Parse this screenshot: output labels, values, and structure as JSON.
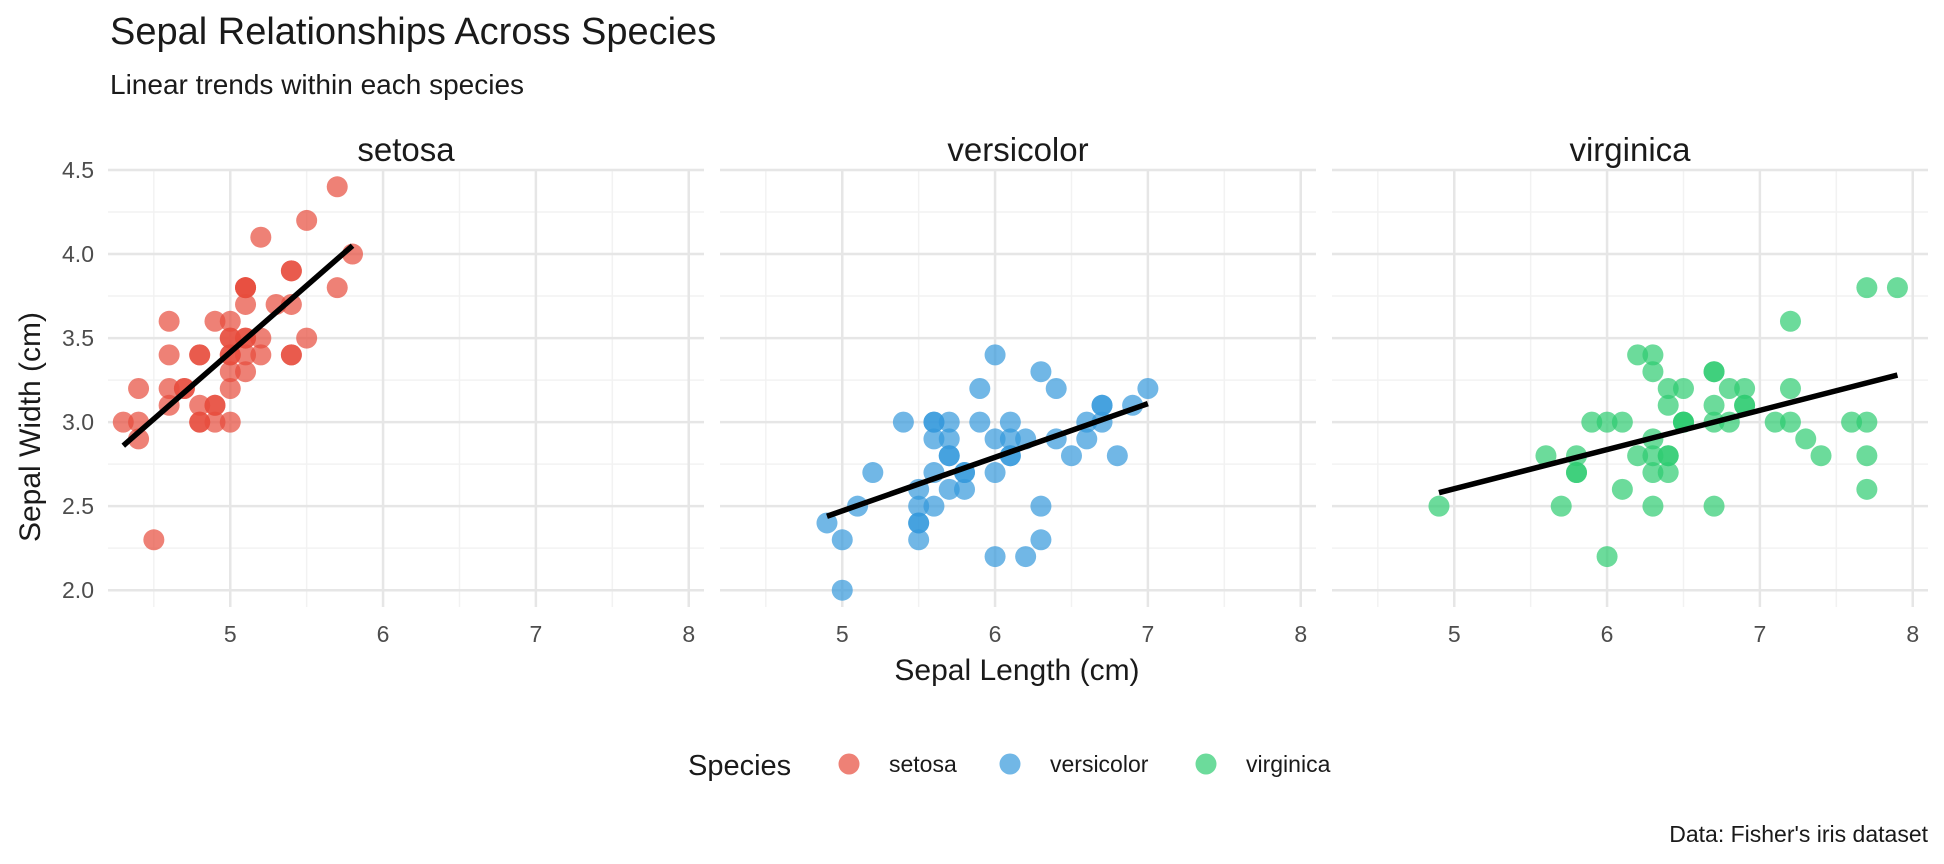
{
  "chart_data": {
    "type": "scatter",
    "title": "Sepal Relationships Across Species",
    "subtitle": "Linear trends within each species",
    "xlabel": "Sepal Length (cm)",
    "ylabel": "Sepal Width (cm)",
    "caption": "Data: Fisher's iris dataset",
    "xlim": [
      4.2,
      8.1
    ],
    "ylim": [
      1.9,
      4.5
    ],
    "x_ticks": [
      5,
      6,
      7,
      8
    ],
    "y_ticks": [
      2.0,
      2.5,
      3.0,
      3.5,
      4.0,
      4.5
    ],
    "y_tick_labels": [
      "2.0",
      "2.5",
      "3.0",
      "3.5",
      "4.0",
      "4.5"
    ],
    "grid": true,
    "facet_by": "Species",
    "legend": {
      "title": "Species",
      "position": "bottom"
    },
    "panels": [
      {
        "name": "setosa",
        "color": "#E74C3C",
        "trend": {
          "x": [
            4.3,
            5.8
          ],
          "y": [
            2.86,
            4.05
          ]
        },
        "points": [
          [
            5.1,
            3.5
          ],
          [
            4.9,
            3.0
          ],
          [
            4.7,
            3.2
          ],
          [
            4.6,
            3.1
          ],
          [
            5.0,
            3.6
          ],
          [
            5.4,
            3.9
          ],
          [
            4.6,
            3.4
          ],
          [
            5.0,
            3.4
          ],
          [
            4.4,
            2.9
          ],
          [
            4.9,
            3.1
          ],
          [
            5.4,
            3.7
          ],
          [
            4.8,
            3.4
          ],
          [
            4.8,
            3.0
          ],
          [
            4.3,
            3.0
          ],
          [
            5.8,
            4.0
          ],
          [
            5.7,
            4.4
          ],
          [
            5.4,
            3.9
          ],
          [
            5.1,
            3.5
          ],
          [
            5.7,
            3.8
          ],
          [
            5.1,
            3.8
          ],
          [
            5.4,
            3.4
          ],
          [
            5.1,
            3.7
          ],
          [
            4.6,
            3.6
          ],
          [
            5.1,
            3.3
          ],
          [
            4.8,
            3.4
          ],
          [
            5.0,
            3.0
          ],
          [
            5.0,
            3.4
          ],
          [
            5.2,
            3.5
          ],
          [
            5.2,
            3.4
          ],
          [
            4.7,
            3.2
          ],
          [
            4.8,
            3.1
          ],
          [
            5.4,
            3.4
          ],
          [
            5.2,
            4.1
          ],
          [
            5.5,
            4.2
          ],
          [
            4.9,
            3.1
          ],
          [
            5.0,
            3.2
          ],
          [
            5.5,
            3.5
          ],
          [
            4.9,
            3.6
          ],
          [
            4.4,
            3.0
          ],
          [
            5.1,
            3.4
          ],
          [
            5.0,
            3.5
          ],
          [
            4.5,
            2.3
          ],
          [
            4.4,
            3.2
          ],
          [
            5.0,
            3.5
          ],
          [
            5.1,
            3.8
          ],
          [
            4.8,
            3.0
          ],
          [
            5.1,
            3.8
          ],
          [
            4.6,
            3.2
          ],
          [
            5.3,
            3.7
          ],
          [
            5.0,
            3.3
          ]
        ]
      },
      {
        "name": "versicolor",
        "color": "#3498DB",
        "trend": {
          "x": [
            4.9,
            7.0
          ],
          "y": [
            2.44,
            3.11
          ]
        },
        "points": [
          [
            7.0,
            3.2
          ],
          [
            6.4,
            3.2
          ],
          [
            6.9,
            3.1
          ],
          [
            5.5,
            2.3
          ],
          [
            6.5,
            2.8
          ],
          [
            5.7,
            2.8
          ],
          [
            6.3,
            3.3
          ],
          [
            4.9,
            2.4
          ],
          [
            6.6,
            2.9
          ],
          [
            5.2,
            2.7
          ],
          [
            5.0,
            2.0
          ],
          [
            5.9,
            3.0
          ],
          [
            6.0,
            2.2
          ],
          [
            6.1,
            2.9
          ],
          [
            5.6,
            2.9
          ],
          [
            6.7,
            3.1
          ],
          [
            5.6,
            3.0
          ],
          [
            5.8,
            2.7
          ],
          [
            6.2,
            2.2
          ],
          [
            5.6,
            2.5
          ],
          [
            5.9,
            3.2
          ],
          [
            6.1,
            2.8
          ],
          [
            6.3,
            2.5
          ],
          [
            6.1,
            2.8
          ],
          [
            6.4,
            2.9
          ],
          [
            6.6,
            3.0
          ],
          [
            6.8,
            2.8
          ],
          [
            6.7,
            3.0
          ],
          [
            6.0,
            2.9
          ],
          [
            5.7,
            2.6
          ],
          [
            5.5,
            2.4
          ],
          [
            5.5,
            2.4
          ],
          [
            5.8,
            2.7
          ],
          [
            6.0,
            2.7
          ],
          [
            5.4,
            3.0
          ],
          [
            6.0,
            3.4
          ],
          [
            6.7,
            3.1
          ],
          [
            6.3,
            2.3
          ],
          [
            5.6,
            3.0
          ],
          [
            5.5,
            2.5
          ],
          [
            5.5,
            2.6
          ],
          [
            6.1,
            3.0
          ],
          [
            5.8,
            2.6
          ],
          [
            5.0,
            2.3
          ],
          [
            5.6,
            2.7
          ],
          [
            5.7,
            3.0
          ],
          [
            5.7,
            2.9
          ],
          [
            6.2,
            2.9
          ],
          [
            5.1,
            2.5
          ],
          [
            5.7,
            2.8
          ]
        ]
      },
      {
        "name": "virginica",
        "color": "#2ECC71",
        "trend": {
          "x": [
            4.9,
            7.9
          ],
          "y": [
            2.58,
            3.28
          ]
        },
        "points": [
          [
            6.3,
            3.3
          ],
          [
            5.8,
            2.7
          ],
          [
            7.1,
            3.0
          ],
          [
            6.3,
            2.9
          ],
          [
            6.5,
            3.0
          ],
          [
            7.6,
            3.0
          ],
          [
            4.9,
            2.5
          ],
          [
            7.3,
            2.9
          ],
          [
            6.7,
            2.5
          ],
          [
            7.2,
            3.6
          ],
          [
            6.5,
            3.2
          ],
          [
            6.4,
            2.7
          ],
          [
            6.8,
            3.0
          ],
          [
            5.7,
            2.5
          ],
          [
            5.8,
            2.8
          ],
          [
            6.4,
            3.2
          ],
          [
            6.5,
            3.0
          ],
          [
            7.7,
            3.8
          ],
          [
            7.7,
            2.6
          ],
          [
            6.0,
            2.2
          ],
          [
            6.9,
            3.2
          ],
          [
            5.6,
            2.8
          ],
          [
            7.7,
            2.8
          ],
          [
            6.3,
            2.7
          ],
          [
            6.7,
            3.3
          ],
          [
            7.2,
            3.2
          ],
          [
            6.2,
            2.8
          ],
          [
            6.1,
            3.0
          ],
          [
            6.4,
            2.8
          ],
          [
            7.2,
            3.0
          ],
          [
            7.4,
            2.8
          ],
          [
            7.9,
            3.8
          ],
          [
            6.4,
            2.8
          ],
          [
            6.3,
            2.8
          ],
          [
            6.1,
            2.6
          ],
          [
            7.7,
            3.0
          ],
          [
            6.3,
            3.4
          ],
          [
            6.4,
            3.1
          ],
          [
            6.0,
            3.0
          ],
          [
            6.9,
            3.1
          ],
          [
            6.7,
            3.1
          ],
          [
            6.9,
            3.1
          ],
          [
            5.8,
            2.7
          ],
          [
            6.8,
            3.2
          ],
          [
            6.7,
            3.3
          ],
          [
            6.7,
            3.0
          ],
          [
            6.3,
            2.5
          ],
          [
            6.5,
            3.0
          ],
          [
            6.2,
            3.4
          ],
          [
            5.9,
            3.0
          ]
        ]
      }
    ]
  }
}
